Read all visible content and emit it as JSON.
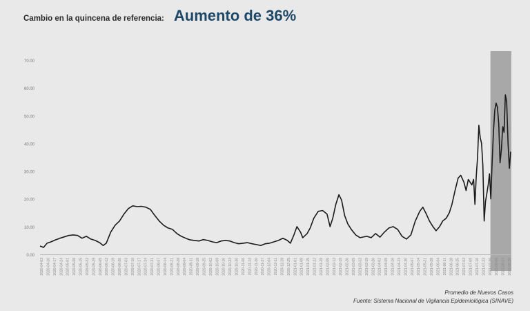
{
  "header": {
    "label": "Cambio en la quincena de referencia:",
    "value": "Aumento de 36%"
  },
  "footer": {
    "series_label": "Promedio de Nuevos Casos",
    "source": "Fuente: Sistema Nacional de Vigilancia Epidemiológica (SINAVE)"
  },
  "chart_data": {
    "type": "line",
    "title": "",
    "xlabel": "",
    "ylabel": "",
    "ylim": [
      0,
      70
    ],
    "yticks": [
      "0.00",
      "10.00",
      "20.00",
      "30.00",
      "40.00",
      "50.00",
      "60.00",
      "70.00"
    ],
    "xticks": [
      "2020-04-03",
      "2020-04-10",
      "2020-04-17",
      "2020-04-24",
      "2020-05-01",
      "2020-05-08",
      "2020-05-15",
      "2020-05-22",
      "2020-05-29",
      "2020-06-05",
      "2020-06-12",
      "2020-06-19",
      "2020-06-26",
      "2020-07-03",
      "2020-07-10",
      "2020-07-17",
      "2020-07-24",
      "2020-07-31",
      "2020-08-07",
      "2020-08-14",
      "2020-08-21",
      "2020-08-28",
      "2020-09-04",
      "2020-09-11",
      "2020-09-18",
      "2020-09-25",
      "2020-10-02",
      "2020-10-09",
      "2020-10-16",
      "2020-10-23",
      "2020-10-30",
      "2020-11-06",
      "2020-11-13",
      "2020-11-20",
      "2020-11-27",
      "2020-12-04",
      "2020-12-11",
      "2020-12-18",
      "2020-12-25",
      "2021-01-01",
      "2021-01-08",
      "2021-01-15",
      "2021-01-22",
      "2021-01-29",
      "2021-02-05",
      "2021-02-12",
      "2021-02-19",
      "2021-02-26",
      "2021-03-05",
      "2021-03-12",
      "2021-03-19",
      "2021-03-26",
      "2021-04-02",
      "2021-04-09",
      "2021-04-16",
      "2021-04-23",
      "2021-04-30",
      "2021-05-07",
      "2021-05-14",
      "2021-05-21",
      "2021-05-28",
      "2021-06-04",
      "2021-06-11",
      "2021-06-18",
      "2021-06-25",
      "2021-07-02",
      "2021-07-09",
      "2021-07-16",
      "2021-07-23",
      "2021-07-30",
      "2021-08-06",
      "2021-08-13",
      "2021-08-20"
    ],
    "highlight": {
      "from": 0.957,
      "to": 1.0,
      "color": "#a8a8a8"
    },
    "grid": false,
    "legend": "none",
    "line_color": "#1a1a1a",
    "series": [
      {
        "values": [
          [
            0.0,
            3.0
          ],
          [
            0.008,
            2.5
          ],
          [
            0.016,
            4.0
          ],
          [
            0.025,
            4.5
          ],
          [
            0.035,
            5.2
          ],
          [
            0.045,
            5.8
          ],
          [
            0.055,
            6.3
          ],
          [
            0.065,
            6.8
          ],
          [
            0.075,
            7.0
          ],
          [
            0.085,
            6.8
          ],
          [
            0.095,
            5.8
          ],
          [
            0.105,
            6.5
          ],
          [
            0.115,
            5.5
          ],
          [
            0.125,
            5.0
          ],
          [
            0.135,
            4.2
          ],
          [
            0.143,
            3.2
          ],
          [
            0.15,
            4.0
          ],
          [
            0.16,
            8.0
          ],
          [
            0.17,
            10.5
          ],
          [
            0.18,
            12.0
          ],
          [
            0.19,
            14.5
          ],
          [
            0.2,
            16.5
          ],
          [
            0.21,
            17.5
          ],
          [
            0.22,
            17.2
          ],
          [
            0.23,
            17.3
          ],
          [
            0.24,
            17.0
          ],
          [
            0.25,
            16.2
          ],
          [
            0.26,
            14.0
          ],
          [
            0.27,
            12.0
          ],
          [
            0.28,
            10.5
          ],
          [
            0.29,
            9.5
          ],
          [
            0.3,
            9.0
          ],
          [
            0.31,
            7.5
          ],
          [
            0.32,
            6.5
          ],
          [
            0.33,
            5.8
          ],
          [
            0.34,
            5.2
          ],
          [
            0.35,
            5.0
          ],
          [
            0.36,
            4.8
          ],
          [
            0.37,
            5.3
          ],
          [
            0.38,
            5.0
          ],
          [
            0.39,
            4.5
          ],
          [
            0.4,
            4.2
          ],
          [
            0.41,
            4.8
          ],
          [
            0.42,
            5.0
          ],
          [
            0.43,
            4.8
          ],
          [
            0.44,
            4.2
          ],
          [
            0.45,
            3.8
          ],
          [
            0.46,
            4.0
          ],
          [
            0.47,
            4.2
          ],
          [
            0.48,
            3.8
          ],
          [
            0.49,
            3.5
          ],
          [
            0.5,
            3.2
          ],
          [
            0.51,
            3.8
          ],
          [
            0.52,
            4.0
          ],
          [
            0.53,
            4.5
          ],
          [
            0.54,
            5.0
          ],
          [
            0.55,
            5.8
          ],
          [
            0.56,
            5.0
          ],
          [
            0.567,
            4.0
          ],
          [
            0.575,
            7.0
          ],
          [
            0.582,
            10.0
          ],
          [
            0.59,
            8.0
          ],
          [
            0.595,
            6.0
          ],
          [
            0.605,
            7.5
          ],
          [
            0.612,
            9.5
          ],
          [
            0.62,
            13.0
          ],
          [
            0.63,
            15.5
          ],
          [
            0.64,
            15.8
          ],
          [
            0.65,
            14.5
          ],
          [
            0.657,
            10.0
          ],
          [
            0.663,
            13.0
          ],
          [
            0.67,
            18.0
          ],
          [
            0.677,
            21.5
          ],
          [
            0.683,
            19.5
          ],
          [
            0.69,
            14.0
          ],
          [
            0.697,
            11.0
          ],
          [
            0.705,
            9.0
          ],
          [
            0.715,
            7.0
          ],
          [
            0.725,
            6.0
          ],
          [
            0.74,
            6.5
          ],
          [
            0.75,
            6.0
          ],
          [
            0.76,
            7.5
          ],
          [
            0.77,
            6.2
          ],
          [
            0.78,
            8.0
          ],
          [
            0.79,
            9.5
          ],
          [
            0.8,
            10.0
          ],
          [
            0.81,
            9.0
          ],
          [
            0.82,
            6.5
          ],
          [
            0.83,
            5.5
          ],
          [
            0.84,
            7.0
          ],
          [
            0.85,
            12.0
          ],
          [
            0.86,
            15.5
          ],
          [
            0.867,
            17.0
          ],
          [
            0.875,
            14.5
          ],
          [
            0.882,
            12.0
          ],
          [
            0.89,
            10.0
          ],
          [
            0.897,
            8.5
          ],
          [
            0.905,
            10.0
          ],
          [
            0.912,
            12.0
          ],
          [
            0.92,
            13.0
          ],
          [
            0.927,
            15.0
          ],
          [
            0.933,
            18.0
          ],
          [
            0.94,
            23.0
          ],
          [
            0.947,
            27.5
          ],
          [
            0.953,
            28.5
          ],
          [
            0.96,
            26.0
          ],
          [
            0.965,
            23.0
          ],
          [
            0.97,
            27.0
          ],
          [
            0.974,
            26.0
          ],
          [
            0.978,
            25.0
          ],
          [
            0.982,
            27.0
          ],
          [
            0.985,
            18.0
          ],
          [
            0.988,
            28.0
          ],
          [
            0.991,
            35.0
          ],
          [
            0.994,
            46.5
          ],
          [
            0.997,
            42.0
          ],
          [
            1.0,
            40.0
          ],
          [
            1.003,
            32.0
          ],
          [
            1.006,
            12.0
          ],
          [
            1.009,
            19.0
          ],
          [
            1.012,
            22.0
          ],
          [
            1.015,
            25.0
          ],
          [
            1.018,
            29.0
          ],
          [
            1.021,
            20.0
          ],
          [
            1.024,
            33.0
          ],
          [
            1.027,
            44.0
          ],
          [
            1.03,
            52.0
          ],
          [
            1.033,
            54.5
          ],
          [
            1.036,
            53.0
          ],
          [
            1.039,
            47.0
          ],
          [
            1.042,
            33.0
          ],
          [
            1.045,
            38.0
          ],
          [
            1.048,
            46.0
          ],
          [
            1.051,
            44.0
          ],
          [
            1.054,
            57.5
          ],
          [
            1.057,
            55.0
          ],
          [
            1.06,
            40.0
          ],
          [
            1.063,
            31.0
          ],
          [
            1.066,
            37.0
          ]
        ]
      }
    ]
  }
}
